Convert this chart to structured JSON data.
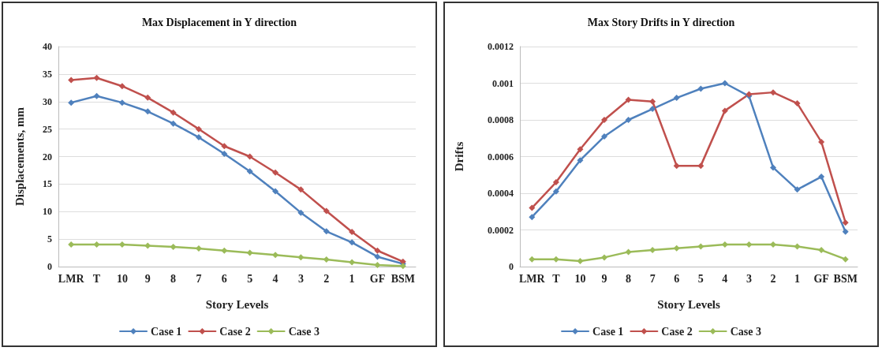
{
  "chart_data": [
    {
      "type": "line",
      "title": "Max Displacement in Y direction",
      "xlabel": "Story Levels",
      "ylabel": "Displacements, mm",
      "categories": [
        "LMR",
        "T",
        "10",
        "9",
        "8",
        "7",
        "6",
        "5",
        "4",
        "3",
        "2",
        "1",
        "GF",
        "BSM"
      ],
      "ylim": [
        0,
        40
      ],
      "yticks": [
        0,
        5,
        10,
        15,
        20,
        25,
        30,
        35,
        40
      ],
      "grid": "y",
      "legend": "bottom",
      "marker": "diamond",
      "line_style": "solid",
      "series": [
        {
          "name": "Case 1",
          "color": "#4f81bd",
          "values": [
            29.8,
            31,
            29.8,
            28.2,
            26,
            23.5,
            20.5,
            17.3,
            13.7,
            9.8,
            6.4,
            4.4,
            1.8,
            0.5
          ]
        },
        {
          "name": "Case 2",
          "color": "#c0504d",
          "values": [
            33.9,
            34.3,
            32.8,
            30.7,
            28,
            25,
            21.9,
            20,
            17.1,
            14,
            10.1,
            6.3,
            2.9,
            0.9
          ]
        },
        {
          "name": "Case 3",
          "color": "#9bbb59",
          "values": [
            4,
            4,
            4,
            3.8,
            3.6,
            3.3,
            2.9,
            2.5,
            2.1,
            1.7,
            1.3,
            0.8,
            0.3,
            0.1
          ]
        }
      ]
    },
    {
      "type": "line",
      "title": "Max Story Drifts in Y direction",
      "xlabel": "Story Levels",
      "ylabel": "Drifts",
      "categories": [
        "LMR",
        "T",
        "10",
        "9",
        "8",
        "7",
        "6",
        "5",
        "4",
        "3",
        "2",
        "1",
        "GF",
        "BSM"
      ],
      "ylim": [
        0,
        0.0012
      ],
      "yticks": [
        0,
        0.0002,
        0.0004,
        0.0006,
        0.0008,
        0.001,
        0.0012
      ],
      "grid": "y",
      "legend": "bottom",
      "marker": "diamond",
      "line_style": "solid",
      "series": [
        {
          "name": "Case 1",
          "color": "#4f81bd",
          "values": [
            0.00027,
            0.00041,
            0.00058,
            0.00071,
            0.0008,
            0.00086,
            0.00092,
            0.00097,
            0.001,
            0.00093,
            0.00054,
            0.00042,
            0.00049,
            0.00019
          ]
        },
        {
          "name": "Case 2",
          "color": "#c0504d",
          "values": [
            0.00032,
            0.00046,
            0.00064,
            0.0008,
            0.00091,
            0.0009,
            0.00055,
            0.00055,
            0.00085,
            0.00094,
            0.00095,
            0.00089,
            0.00068,
            0.00024
          ]
        },
        {
          "name": "Case 3",
          "color": "#9bbb59",
          "values": [
            4e-05,
            4e-05,
            3e-05,
            5e-05,
            8e-05,
            9e-05,
            0.0001,
            0.00011,
            0.00012,
            0.00012,
            0.00012,
            0.00011,
            9e-05,
            4e-05
          ]
        }
      ]
    }
  ]
}
